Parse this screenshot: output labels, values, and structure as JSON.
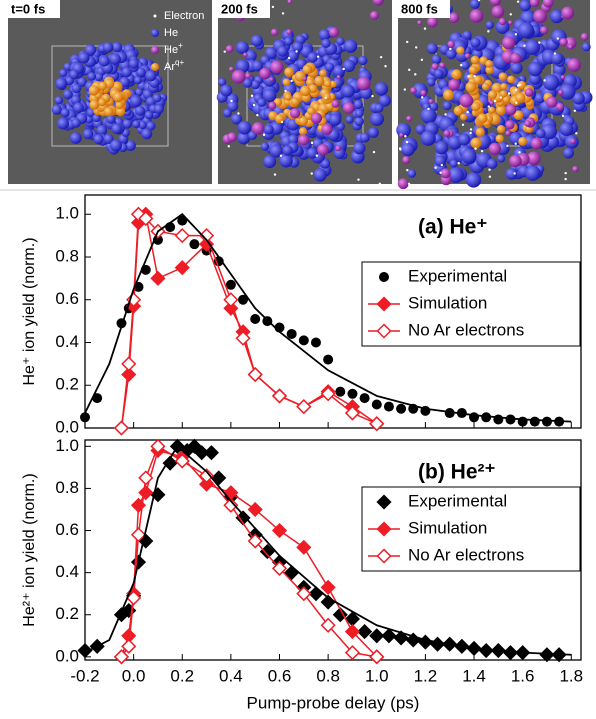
{
  "snapshots": [
    {
      "label": "t=0 fs"
    },
    {
      "label": "200 fs"
    },
    {
      "label": "800 fs"
    }
  ],
  "snapshot_legend": [
    {
      "text": "Electron"
    },
    {
      "text": "He"
    },
    {
      "text": "He",
      "sup": "+"
    },
    {
      "text": "Ar",
      "sup": "q+"
    }
  ],
  "chart_data": [
    {
      "type": "line",
      "title": "(a) He⁺",
      "ylabel": "He⁺ ion yield (norm.)",
      "xlim": [
        -0.2,
        1.84
      ],
      "ylim": [
        0,
        1.09
      ],
      "xticks": [
        -0.2,
        0,
        0.2,
        0.4,
        0.6,
        0.8,
        1,
        1.2,
        1.4,
        1.6,
        1.8
      ],
      "yticks": [
        {
          "value": 0,
          "label": "0.0"
        },
        0.2,
        0.4,
        0.6,
        0.8,
        {
          "value": 1,
          "label": "1.0"
        }
      ],
      "series": [
        {
          "name": "Experimental",
          "color": "#000000",
          "marker": "circle",
          "line": false,
          "x": [
            -0.2,
            -0.15,
            -0.05,
            -0.02,
            0.02,
            0.05,
            0.1,
            0.15,
            0.2,
            0.25,
            0.3,
            0.35,
            0.4,
            0.45,
            0.5,
            0.55,
            0.6,
            0.65,
            0.7,
            0.75,
            0.8,
            0.85,
            0.9,
            0.95,
            1.0,
            1.05,
            1.1,
            1.15,
            1.2,
            1.3,
            1.35,
            1.4,
            1.45,
            1.5,
            1.55,
            1.6,
            1.65,
            1.7,
            1.75
          ],
          "values": [
            0.05,
            0.14,
            0.49,
            0.56,
            0.66,
            0.74,
            0.88,
            0.94,
            0.97,
            0.86,
            0.83,
            0.78,
            0.67,
            0.6,
            0.51,
            0.5,
            0.47,
            0.44,
            0.41,
            0.4,
            0.32,
            0.17,
            0.16,
            0.14,
            0.11,
            0.1,
            0.09,
            0.09,
            0.08,
            0.07,
            0.07,
            0.05,
            0.05,
            0.04,
            0.04,
            0.03,
            0.03,
            0.03,
            0.03
          ]
        },
        {
          "name": "Simulation",
          "color": "#ee1c25",
          "marker": "diamond",
          "line": true,
          "x": [
            -0.05,
            -0.02,
            0,
            0.02,
            0.05,
            0.1,
            0.2,
            0.3,
            0.4,
            0.45,
            0.5,
            0.6,
            0.7,
            0.8,
            0.9,
            1.0
          ],
          "values": [
            0,
            0.25,
            0.57,
            0.96,
            1.0,
            0.7,
            0.75,
            0.86,
            0.56,
            0.45,
            0.25,
            0.15,
            0.1,
            0.17,
            0.1,
            0.02
          ]
        },
        {
          "name": "No Ar electrons",
          "color": "#ee1c25",
          "marker": "diamond-open",
          "line": true,
          "x": [
            -0.05,
            -0.02,
            0,
            0.02,
            0.05,
            0.1,
            0.2,
            0.3,
            0.4,
            0.45,
            0.5,
            0.6,
            0.7,
            0.8,
            0.9,
            1.0
          ],
          "values": [
            0,
            0.3,
            0.6,
            1.0,
            0.98,
            0.92,
            0.9,
            0.9,
            0.6,
            0.42,
            0.25,
            0.15,
            0.1,
            0.16,
            0.07,
            0.02
          ]
        },
        {
          "color": "#000000",
          "marker": "none",
          "line": true,
          "x": [
            -0.2,
            -0.1,
            0,
            0.1,
            0.2,
            0.3,
            0.4,
            0.5,
            0.6,
            0.8,
            1.0,
            1.2,
            1.4,
            1.6,
            1.8
          ],
          "values": [
            0.07,
            0.3,
            0.65,
            0.92,
            1.0,
            0.88,
            0.72,
            0.56,
            0.45,
            0.27,
            0.15,
            0.09,
            0.06,
            0.04,
            0.03
          ]
        }
      ]
    },
    {
      "type": "line",
      "title": "(b) He²⁺",
      "ylabel": "He²⁺ ion yield (norm.)",
      "xlabel": "Pump-probe delay (ps)",
      "xlim": [
        -0.2,
        1.84
      ],
      "ylim": [
        -0.015,
        1.03
      ],
      "xticks": [
        -0.2,
        {
          "value": 0,
          "label": "0.0"
        },
        0.2,
        0.4,
        0.6,
        0.8,
        {
          "value": 1,
          "label": "1.0"
        },
        1.2,
        1.4,
        1.6,
        1.8
      ],
      "yticks": [
        {
          "value": 0,
          "label": "0.0"
        },
        0.2,
        0.4,
        0.6,
        0.8,
        {
          "value": 1,
          "label": "1.0"
        }
      ],
      "series": [
        {
          "name": "Experimental",
          "color": "#000000",
          "marker": "diamond",
          "line": false,
          "x": [
            -0.2,
            -0.15,
            -0.05,
            -0.02,
            0,
            0.02,
            0.05,
            0.1,
            0.15,
            0.18,
            0.22,
            0.25,
            0.28,
            0.32,
            0.35,
            0.4,
            0.45,
            0.5,
            0.55,
            0.6,
            0.65,
            0.7,
            0.75,
            0.8,
            0.85,
            0.9,
            0.95,
            1.0,
            1.05,
            1.1,
            1.15,
            1.2,
            1.25,
            1.3,
            1.35,
            1.4,
            1.45,
            1.5,
            1.55,
            1.6,
            1.7,
            1.75
          ],
          "values": [
            0.03,
            0.05,
            0.2,
            0.22,
            0.29,
            0.45,
            0.55,
            0.77,
            0.92,
            1.0,
            0.98,
            1.0,
            0.97,
            0.97,
            0.85,
            0.76,
            0.66,
            0.58,
            0.5,
            0.45,
            0.4,
            0.33,
            0.3,
            0.26,
            0.2,
            0.18,
            0.12,
            0.1,
            0.1,
            0.09,
            0.08,
            0.07,
            0.06,
            0.06,
            0.05,
            0.04,
            0.03,
            0.03,
            0.02,
            0.02,
            0.01,
            0.01
          ]
        },
        {
          "name": "Simulation",
          "color": "#ee1c25",
          "marker": "diamond",
          "line": true,
          "x": [
            -0.05,
            -0.02,
            0,
            0.02,
            0.05,
            0.1,
            0.2,
            0.3,
            0.4,
            0.5,
            0.6,
            0.7,
            0.8,
            0.9,
            1.0
          ],
          "values": [
            0,
            0.1,
            0.3,
            0.72,
            0.78,
            0.98,
            0.95,
            0.82,
            0.78,
            0.7,
            0.6,
            0.52,
            0.33,
            0.12,
            0
          ]
        },
        {
          "name": "No Ar electrons",
          "color": "#ee1c25",
          "marker": "diamond-open",
          "line": true,
          "x": [
            -0.05,
            -0.02,
            0,
            0.02,
            0.05,
            0.1,
            0.2,
            0.3,
            0.4,
            0.5,
            0.6,
            0.7,
            0.8,
            0.9,
            1.0
          ],
          "values": [
            0,
            0.05,
            0.28,
            0.58,
            0.85,
            1.0,
            0.93,
            0.86,
            0.72,
            0.55,
            0.42,
            0.3,
            0.15,
            0.02,
            0
          ]
        },
        {
          "color": "#000000",
          "marker": "none",
          "line": true,
          "x": [
            -0.2,
            -0.1,
            0,
            0.1,
            0.18,
            0.3,
            0.4,
            0.6,
            0.8,
            1.0,
            1.2,
            1.4,
            1.6,
            1.8
          ],
          "values": [
            0.02,
            0.08,
            0.35,
            0.85,
            1.0,
            0.88,
            0.74,
            0.48,
            0.28,
            0.15,
            0.08,
            0.04,
            0.02,
            0.01
          ]
        }
      ]
    }
  ]
}
